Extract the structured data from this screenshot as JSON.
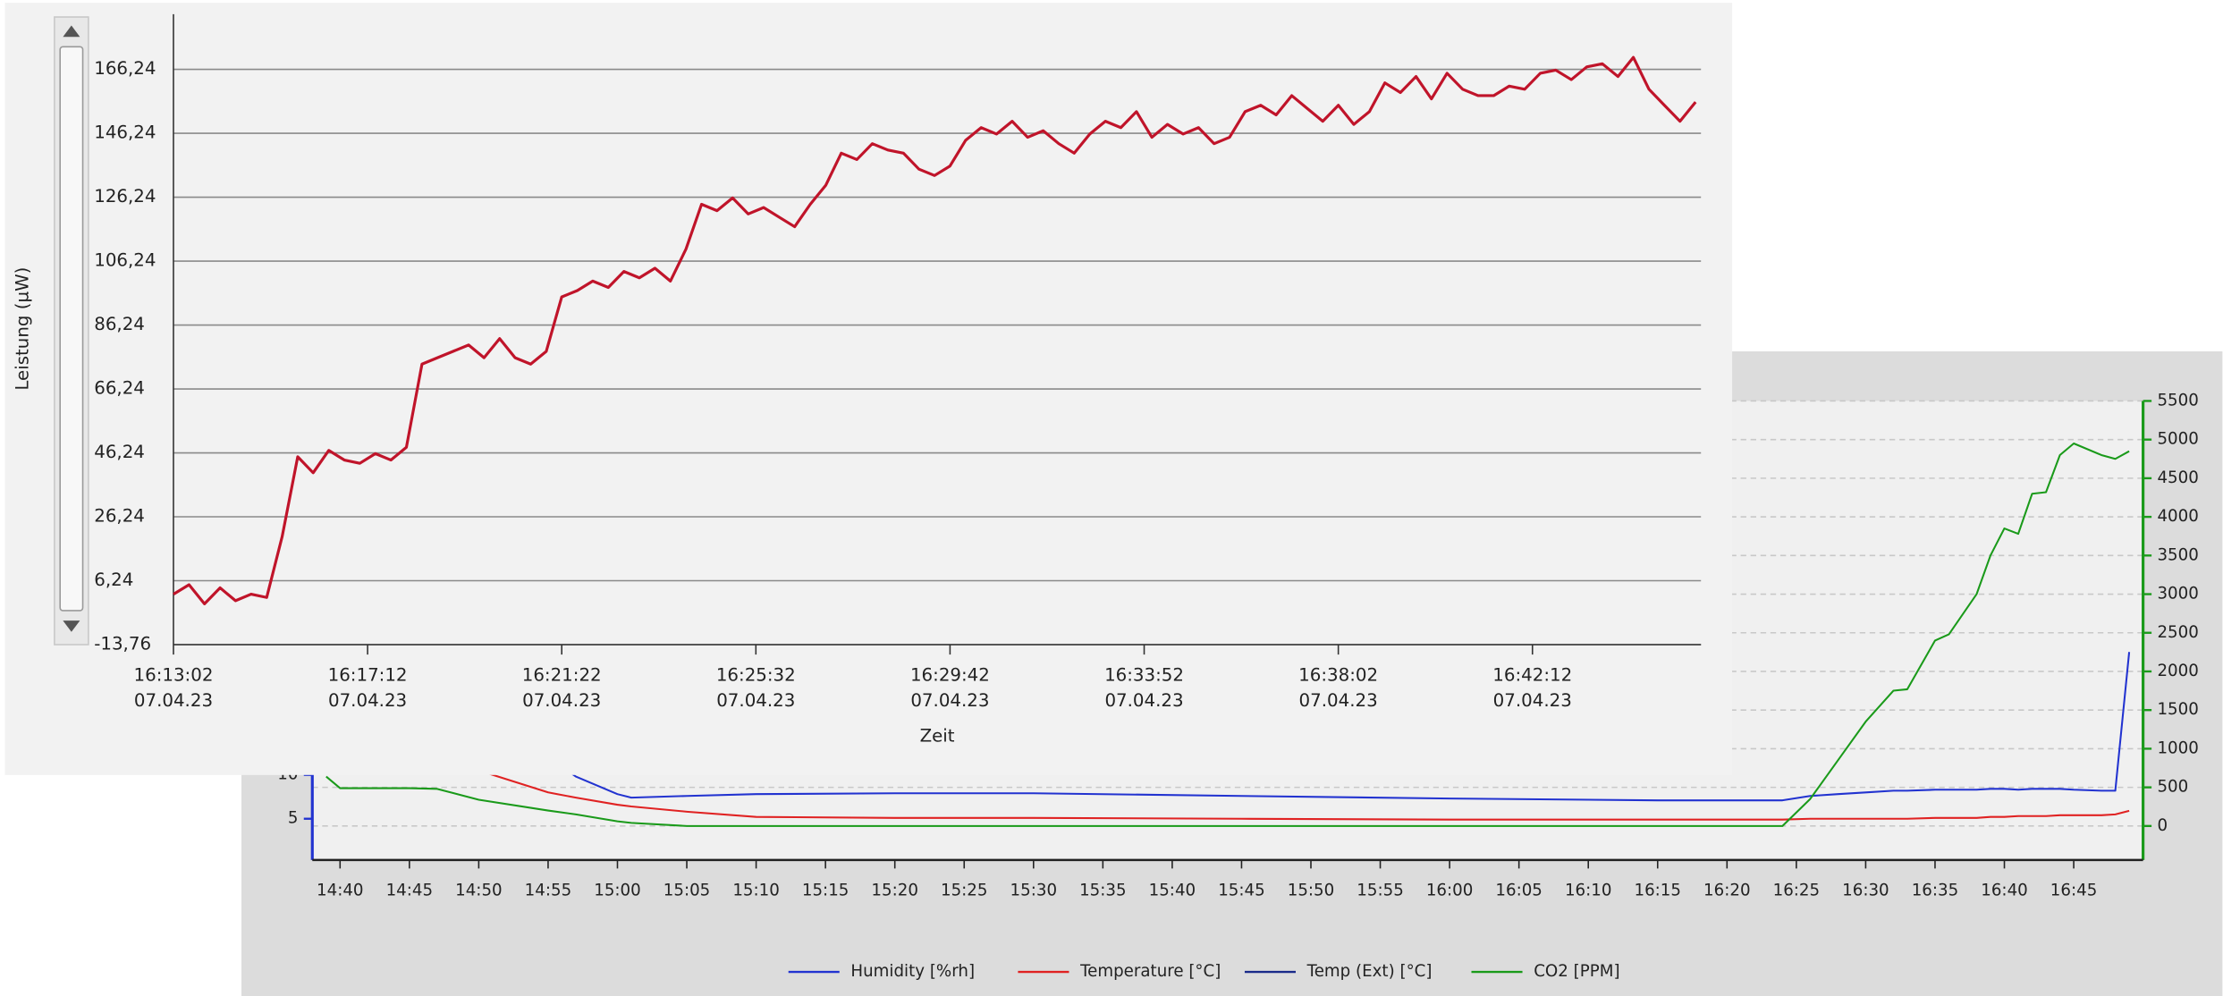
{
  "chart_data": [
    {
      "type": "line",
      "ylabel": "Leistung (µW)",
      "xlabel": "Zeit",
      "color": "#c0142a",
      "grid": true,
      "date": "07.04.23",
      "xlim": [
        "16:13:02",
        "16:45:49"
      ],
      "xticks": [
        "16:13:02",
        "16:17:12",
        "16:21:22",
        "16:25:32",
        "16:29:42",
        "16:33:52",
        "16:38:02",
        "16:42:12"
      ],
      "ylim": [
        -13.76,
        183.5
      ],
      "yticks": [
        {
          "value": -13.76,
          "label": "-13,76"
        },
        {
          "value": 6.24,
          "label": "6,24"
        },
        {
          "value": 26.24,
          "label": "26,24"
        },
        {
          "value": 46.24,
          "label": "46,24"
        },
        {
          "value": 66.24,
          "label": "66,24"
        },
        {
          "value": 86.24,
          "label": "86,24"
        },
        {
          "value": 106.24,
          "label": "106,24"
        },
        {
          "value": 126.24,
          "label": "126,24"
        },
        {
          "value": 146.24,
          "label": "146,24"
        },
        {
          "value": 166.24,
          "label": "166,24"
        }
      ],
      "x": [
        "16:13:02",
        "16:13:22",
        "16:13:42",
        "16:14:02",
        "16:14:22",
        "16:14:42",
        "16:15:02",
        "16:15:22",
        "16:15:42",
        "16:16:02",
        "16:16:22",
        "16:16:42",
        "16:17:02",
        "16:17:22",
        "16:17:42",
        "16:18:02",
        "16:18:22",
        "16:18:42",
        "16:19:02",
        "16:19:22",
        "16:19:42",
        "16:20:02",
        "16:20:22",
        "16:20:42",
        "16:21:02",
        "16:21:22",
        "16:21:42",
        "16:22:02",
        "16:22:22",
        "16:22:42",
        "16:23:02",
        "16:23:22",
        "16:23:42",
        "16:24:02",
        "16:24:22",
        "16:24:42",
        "16:25:02",
        "16:25:22",
        "16:25:42",
        "16:26:02",
        "16:26:22",
        "16:26:42",
        "16:27:02",
        "16:27:22",
        "16:27:42",
        "16:28:02",
        "16:28:22",
        "16:28:42",
        "16:29:02",
        "16:29:22",
        "16:29:42",
        "16:30:02",
        "16:30:22",
        "16:30:42",
        "16:31:02",
        "16:31:22",
        "16:31:42",
        "16:32:02",
        "16:32:22",
        "16:32:42",
        "16:33:02",
        "16:33:22",
        "16:33:42",
        "16:34:02",
        "16:34:22",
        "16:34:42",
        "16:35:02",
        "16:35:22",
        "16:35:42",
        "16:36:02",
        "16:36:22",
        "16:36:42",
        "16:37:02",
        "16:37:22",
        "16:37:42",
        "16:38:02",
        "16:38:22",
        "16:38:42",
        "16:39:02",
        "16:39:22",
        "16:39:42",
        "16:40:02",
        "16:40:22",
        "16:40:42",
        "16:41:02",
        "16:41:22",
        "16:41:42",
        "16:42:02",
        "16:42:22",
        "16:42:42",
        "16:43:02",
        "16:43:22",
        "16:43:42",
        "16:44:02",
        "16:44:22",
        "16:44:42",
        "16:45:02",
        "16:45:22",
        "16:45:42"
      ],
      "values": [
        2,
        5,
        -1,
        4,
        0,
        2,
        1,
        20,
        45,
        40,
        47,
        44,
        43,
        46,
        44,
        48,
        74,
        76,
        78,
        80,
        76,
        82,
        76,
        74,
        78,
        95,
        97,
        100,
        98,
        103,
        101,
        104,
        100,
        110,
        124,
        122,
        126,
        121,
        123,
        120,
        117,
        124,
        130,
        140,
        138,
        143,
        141,
        140,
        135,
        133,
        136,
        144,
        148,
        146,
        150,
        145,
        147,
        143,
        140,
        146,
        150,
        148,
        153,
        145,
        149,
        146,
        148,
        143,
        145,
        153,
        155,
        152,
        158,
        154,
        150,
        155,
        149,
        153,
        162,
        159,
        164,
        157,
        165,
        160,
        158,
        158,
        161,
        160,
        165,
        166,
        163,
        167,
        168,
        164,
        170,
        160,
        155,
        150,
        156
      ]
    },
    {
      "type": "line",
      "legend": "bottom",
      "grid": true,
      "xlim": [
        "14:38",
        "16:50"
      ],
      "xticks": [
        "14:40",
        "14:45",
        "14:50",
        "14:55",
        "15:00",
        "15:05",
        "15:10",
        "15:15",
        "15:20",
        "15:25",
        "15:30",
        "15:35",
        "15:40",
        "15:45",
        "15:50",
        "15:55",
        "16:00",
        "16:05",
        "16:10",
        "16:15",
        "16:20",
        "16:25",
        "16:30",
        "16:35",
        "16:40",
        "16:45"
      ],
      "ylim": [
        0.3,
        52.6
      ],
      "yticks": [
        5,
        10
      ],
      "y2lim": [
        -440,
        5500
      ],
      "y2ticks": [
        0,
        500,
        1000,
        1500,
        2000,
        2500,
        3000,
        3500,
        4000,
        4500,
        5000,
        5500
      ],
      "x": [
        "14:39",
        "14:40",
        "14:45",
        "14:47",
        "14:50",
        "14:55",
        "14:57",
        "15:00",
        "15:01",
        "15:05",
        "15:10",
        "15:20",
        "15:30",
        "15:45",
        "16:00",
        "16:15",
        "16:23",
        "16:24",
        "16:26",
        "16:28",
        "16:30",
        "16:32",
        "16:33",
        "16:35",
        "16:36",
        "16:38",
        "16:39",
        "16:40",
        "16:41",
        "16:42",
        "16:43",
        "16:44",
        "16:45",
        "16:47",
        "16:48",
        "16:49"
      ],
      "series": [
        {
          "name": "Humidity [%rh]",
          "color": "#2233d0",
          "values": [
            30,
            28,
            24,
            21,
            18,
            12,
            9.8,
            7.8,
            7.4,
            7.6,
            7.8,
            7.9,
            7.9,
            7.6,
            7.3,
            7.1,
            7.1,
            7.1,
            7.6,
            7.8,
            8.0,
            8.2,
            8.2,
            8.3,
            8.3,
            8.3,
            8.4,
            8.4,
            8.3,
            8.4,
            8.4,
            8.4,
            8.3,
            8.2,
            8.2,
            24
          ]
        },
        {
          "name": "Temperature [°C]",
          "color": "#e02222",
          "values": [
            20,
            19,
            16,
            14,
            10.5,
            8,
            7.4,
            6.6,
            6.4,
            5.8,
            5.2,
            5.1,
            5.1,
            5.0,
            4.9,
            4.9,
            4.9,
            4.9,
            5.0,
            5.0,
            5.0,
            5.0,
            5.0,
            5.1,
            5.1,
            5.1,
            5.2,
            5.2,
            5.3,
            5.3,
            5.3,
            5.4,
            5.4,
            5.4,
            5.5,
            5.9
          ]
        },
        {
          "name": "Temp (Ext) [°C]",
          "color": "#1a2a8a",
          "values": [
            null,
            null,
            null,
            null,
            null,
            null,
            null,
            null,
            null,
            null,
            null,
            null,
            null,
            null,
            null,
            null,
            null,
            null,
            null,
            null,
            null,
            null,
            null,
            null,
            null,
            null,
            null,
            null,
            null,
            null,
            null,
            null,
            null,
            null,
            null,
            null
          ]
        },
        {
          "name": "CO2 [PPM]",
          "color": "#1a9a1a",
          "axis": "y2",
          "values": [
            640,
            490,
            490,
            480,
            340,
            200,
            150,
            60,
            40,
            0,
            0,
            0,
            0,
            0,
            0,
            0,
            0,
            0,
            350,
            850,
            1350,
            1750,
            1770,
            2400,
            2480,
            3000,
            3500,
            3850,
            3780,
            4300,
            4320,
            4800,
            4950,
            4800,
            4750,
            4850
          ]
        }
      ]
    }
  ]
}
